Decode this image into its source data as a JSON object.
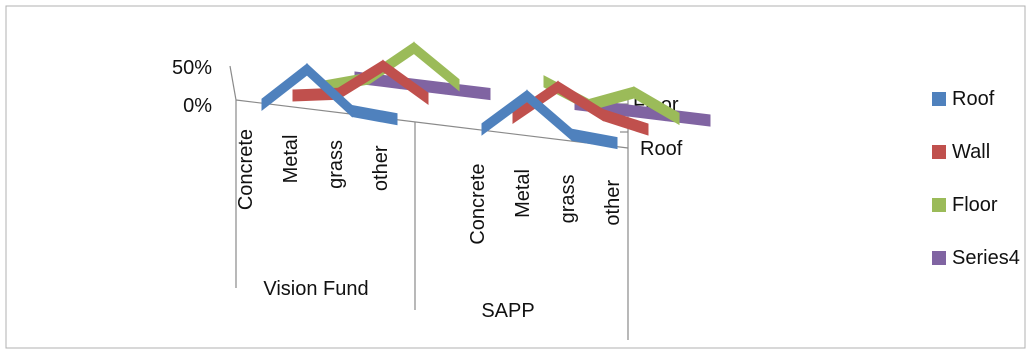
{
  "chart_data": {
    "type": "line",
    "style": "3d",
    "y_tick_labels": [
      "0%",
      "50%"
    ],
    "ylim": [
      0,
      0.5
    ],
    "groups": [
      {
        "name": "Vision Fund",
        "categories": [
          "Concrete",
          "Metal",
          "grass",
          "other"
        ]
      },
      {
        "name": "SAPP",
        "categories": [
          "Concrete",
          "Metal",
          "grass",
          "other"
        ]
      }
    ],
    "depth_labels": [
      "Roof",
      "Floor"
    ],
    "series": [
      {
        "name": "Roof",
        "color": "#4F81BD",
        "values": [
          0.0,
          0.45,
          0.05,
          0.02,
          0.02,
          0.45,
          0.08,
          0.05
        ]
      },
      {
        "name": "Wall",
        "color": "#C0504D",
        "values": [
          0.0,
          0.08,
          0.45,
          0.15,
          0.05,
          0.45,
          0.2,
          0.1
        ]
      },
      {
        "name": "Floor",
        "color": "#9BBB59",
        "values": [
          0.0,
          0.15,
          0.55,
          0.2,
          0.35,
          0.15,
          0.35,
          0.12
        ]
      },
      {
        "name": "Series4",
        "color": "#8064A2",
        "values": [
          0,
          0,
          0,
          0,
          0,
          0,
          0,
          0
        ]
      }
    ],
    "legend_position": "right",
    "grid": false
  }
}
